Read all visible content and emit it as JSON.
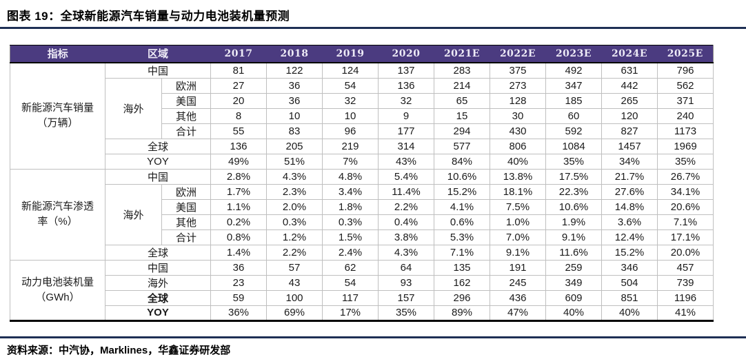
{
  "title": "图表 19：全球新能源汽车销量与动力电池装机量预测",
  "source": "资料来源：中汽协，Marklines，华鑫证券研发部",
  "colors": {
    "header_bg": "#4b3b80",
    "header_text": "#edeaf6",
    "rule_navy": "#1e2f54",
    "grid_line": "#bfbfbf",
    "table_bottom_border": "#000000"
  },
  "table": {
    "header": {
      "indicator": "指标",
      "region": "区域",
      "years": [
        "2017",
        "2018",
        "2019",
        "2020",
        "2021E",
        "2022E",
        "2023E",
        "2024E",
        "2025E"
      ]
    },
    "sections": [
      {
        "indicator_lines": [
          "新能源汽车销量",
          "（万辆）"
        ],
        "rows": [
          {
            "region": "中国",
            "region_colspan": 2,
            "values": [
              "81",
              "122",
              "124",
              "137",
              "283",
              "375",
              "492",
              "631",
              "796"
            ]
          },
          {
            "group": "海外",
            "group_rowspan": 4,
            "region": "欧洲",
            "values": [
              "27",
              "36",
              "54",
              "136",
              "214",
              "273",
              "347",
              "442",
              "562"
            ]
          },
          {
            "region": "美国",
            "values": [
              "20",
              "36",
              "32",
              "32",
              "65",
              "128",
              "185",
              "265",
              "371"
            ]
          },
          {
            "region": "其他",
            "values": [
              "8",
              "10",
              "10",
              "9",
              "15",
              "30",
              "60",
              "120",
              "240"
            ]
          },
          {
            "region": "合计",
            "values": [
              "55",
              "83",
              "96",
              "177",
              "294",
              "430",
              "592",
              "827",
              "1173"
            ]
          },
          {
            "region": "全球",
            "region_colspan": 2,
            "values": [
              "136",
              "205",
              "219",
              "314",
              "577",
              "806",
              "1084",
              "1457",
              "1969"
            ]
          },
          {
            "region": "YOY",
            "region_colspan": 2,
            "values": [
              "49%",
              "51%",
              "7%",
              "43%",
              "84%",
              "40%",
              "35%",
              "34%",
              "35%"
            ]
          }
        ]
      },
      {
        "indicator_lines": [
          "新能源汽车渗透",
          "率（%）"
        ],
        "rows": [
          {
            "region": "中国",
            "region_colspan": 2,
            "values": [
              "2.8%",
              "4.3%",
              "4.8%",
              "5.4%",
              "10.6%",
              "13.8%",
              "17.5%",
              "21.7%",
              "26.7%"
            ]
          },
          {
            "group": "海外",
            "group_rowspan": 4,
            "region": "欧洲",
            "values": [
              "1.7%",
              "2.3%",
              "3.4%",
              "11.4%",
              "15.2%",
              "18.1%",
              "22.3%",
              "27.6%",
              "34.1%"
            ]
          },
          {
            "region": "美国",
            "values": [
              "1.1%",
              "2.0%",
              "1.8%",
              "2.2%",
              "4.1%",
              "7.5%",
              "10.6%",
              "14.8%",
              "20.6%"
            ]
          },
          {
            "region": "其他",
            "values": [
              "0.2%",
              "0.3%",
              "0.3%",
              "0.4%",
              "0.6%",
              "1.0%",
              "1.9%",
              "3.6%",
              "7.1%"
            ]
          },
          {
            "region": "合计",
            "values": [
              "0.8%",
              "1.2%",
              "1.5%",
              "3.8%",
              "5.3%",
              "7.0%",
              "9.1%",
              "12.4%",
              "17.1%"
            ]
          },
          {
            "region": "全球",
            "region_colspan": 2,
            "values": [
              "1.4%",
              "2.2%",
              "2.4%",
              "4.3%",
              "7.1%",
              "9.1%",
              "11.6%",
              "15.2%",
              "20.0%"
            ]
          }
        ]
      },
      {
        "indicator_lines": [
          "动力电池装机量",
          "（GWh）"
        ],
        "rows": [
          {
            "region": "中国",
            "region_colspan": 2,
            "values": [
              "36",
              "57",
              "62",
              "64",
              "135",
              "191",
              "259",
              "346",
              "457"
            ]
          },
          {
            "region": "海外",
            "region_colspan": 2,
            "values": [
              "23",
              "43",
              "54",
              "93",
              "162",
              "245",
              "349",
              "504",
              "739"
            ]
          },
          {
            "region": "全球",
            "region_colspan": 2,
            "bold": true,
            "values": [
              "59",
              "100",
              "117",
              "157",
              "296",
              "436",
              "609",
              "851",
              "1196"
            ]
          },
          {
            "region": "YOY",
            "region_colspan": 2,
            "bold": true,
            "values": [
              "36%",
              "69%",
              "17%",
              "35%",
              "89%",
              "47%",
              "40%",
              "40%",
              "41%"
            ]
          }
        ]
      }
    ]
  }
}
